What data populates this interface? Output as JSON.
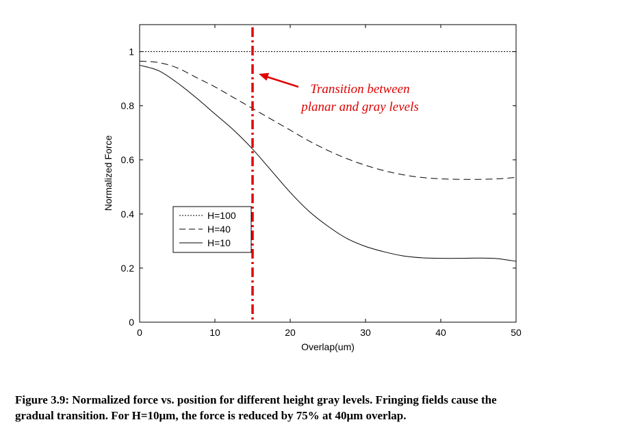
{
  "chart_data": {
    "type": "line",
    "xlabel": "Overlap(um)",
    "ylabel": "Normalized Force",
    "xlim": [
      0,
      50
    ],
    "ylim": [
      0,
      1.1
    ],
    "xticks": [
      "0",
      "10",
      "20",
      "30",
      "40",
      "50"
    ],
    "yticks": [
      "0",
      "0.2",
      "0.4",
      "0.6",
      "0.8",
      "1"
    ],
    "x": [
      0,
      2.5,
      5,
      7.5,
      10,
      12.5,
      15,
      17.5,
      20,
      22.5,
      25,
      27.5,
      30,
      32.5,
      35,
      37.5,
      40,
      42.5,
      45,
      47.5,
      50
    ],
    "series": [
      {
        "name": "H=100",
        "style": "dotted",
        "values": [
          1,
          1,
          1,
          1,
          1,
          1,
          1,
          1,
          1,
          1,
          1,
          1,
          1,
          1,
          1,
          1,
          1,
          1,
          1,
          1,
          1
        ]
      },
      {
        "name": "H=40",
        "style": "dashed",
        "values": [
          0.965,
          0.96,
          0.94,
          0.905,
          0.87,
          0.83,
          0.79,
          0.75,
          0.71,
          0.67,
          0.635,
          0.605,
          0.58,
          0.56,
          0.545,
          0.535,
          0.53,
          0.528,
          0.528,
          0.53,
          0.535
        ]
      },
      {
        "name": "H=10",
        "style": "solid",
        "values": [
          0.95,
          0.93,
          0.885,
          0.83,
          0.77,
          0.71,
          0.64,
          0.56,
          0.48,
          0.41,
          0.355,
          0.31,
          0.28,
          0.26,
          0.245,
          0.238,
          0.236,
          0.236,
          0.237,
          0.235,
          0.225
        ]
      }
    ],
    "legend": "middle-left",
    "grid": false,
    "annotation": {
      "line_x": 15,
      "color": "#e00000",
      "text_lines": [
        "Transition between",
        "planar and gray levels"
      ]
    }
  },
  "caption": {
    "line1": "Figure 3.9: Normalized force vs. position for different height gray levels.  Fringing fields cause the",
    "line2": "gradual transition.  For H=10μm, the force is reduced by 75% at 40μm overlap."
  }
}
